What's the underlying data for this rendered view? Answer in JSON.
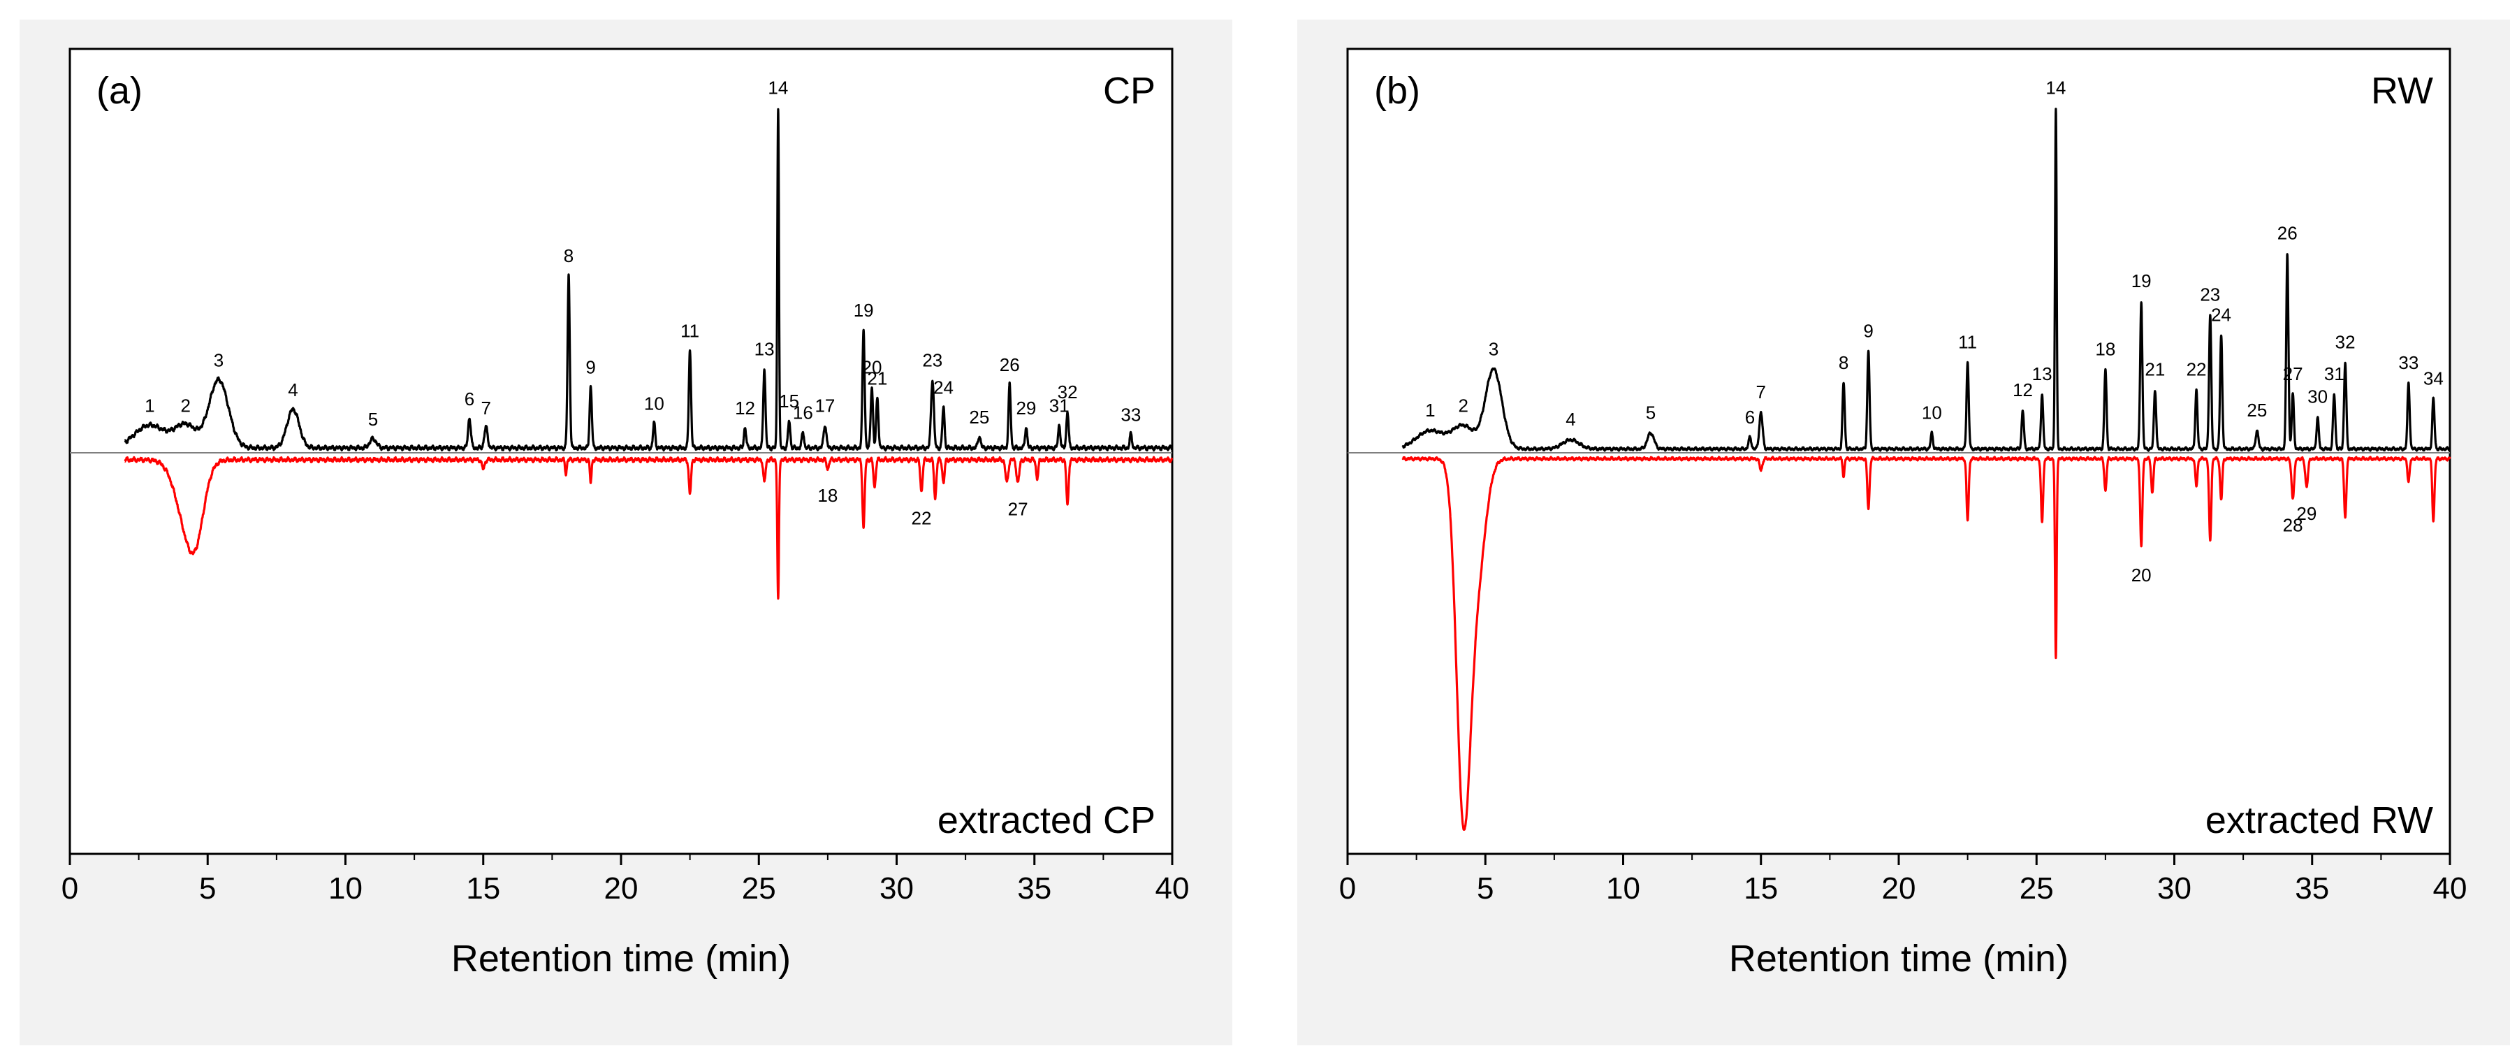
{
  "chart_data": [
    {
      "type": "line",
      "panel_label": "(a)",
      "sample_label": "CP",
      "extracted_label": "extracted CP",
      "xlabel": "Retention time (min)",
      "ylabel": "",
      "xlim": [
        0,
        40
      ],
      "ylim": [
        -1.8,
        1.5
      ],
      "xticks": [
        0,
        5,
        10,
        15,
        20,
        25,
        30,
        35,
        40
      ],
      "xtick_labels": [
        "0",
        "5",
        "10",
        "15",
        "20",
        "25",
        "30",
        "35",
        "40"
      ],
      "yticks": [],
      "colors": {
        "sample": "#000000",
        "extracted": "#ff0000"
      },
      "sample_peaks": [
        {
          "label": "1",
          "x": 2.9,
          "y": 0.1,
          "w": 0.55
        },
        {
          "label": "2",
          "x": 4.2,
          "y": 0.1,
          "w": 0.4
        },
        {
          "label": "3",
          "x": 5.4,
          "y": 0.3,
          "w": 0.35
        },
        {
          "label": "4",
          "x": 8.1,
          "y": 0.17,
          "w": 0.22
        },
        {
          "label": "5",
          "x": 11.0,
          "y": 0.04,
          "w": 0.12
        },
        {
          "label": "6",
          "x": 14.5,
          "y": 0.13,
          "w": 0.05
        },
        {
          "label": "7",
          "x": 15.1,
          "y": 0.09,
          "w": 0.06
        },
        {
          "label": "8",
          "x": 18.1,
          "y": 0.76,
          "w": 0.04
        },
        {
          "label": "9",
          "x": 18.9,
          "y": 0.27,
          "w": 0.04
        },
        {
          "label": "10",
          "x": 21.2,
          "y": 0.11,
          "w": 0.04
        },
        {
          "label": "11",
          "x": 22.5,
          "y": 0.43,
          "w": 0.04
        },
        {
          "label": "12",
          "x": 24.5,
          "y": 0.09,
          "w": 0.04
        },
        {
          "label": "13",
          "x": 25.2,
          "y": 0.35,
          "w": 0.04
        },
        {
          "label": "14",
          "x": 25.7,
          "y": 1.5,
          "w": 0.03
        },
        {
          "label": "15",
          "x": 26.1,
          "y": 0.12,
          "w": 0.04
        },
        {
          "label": "16",
          "x": 26.6,
          "y": 0.07,
          "w": 0.04
        },
        {
          "label": "17",
          "x": 27.4,
          "y": 0.1,
          "w": 0.05
        },
        {
          "label": "19",
          "x": 28.8,
          "y": 0.52,
          "w": 0.04
        },
        {
          "label": "20",
          "x": 29.1,
          "y": 0.27,
          "w": 0.04
        },
        {
          "label": "21",
          "x": 29.3,
          "y": 0.22,
          "w": 0.04
        },
        {
          "label": "23",
          "x": 31.3,
          "y": 0.3,
          "w": 0.05
        },
        {
          "label": "24",
          "x": 31.7,
          "y": 0.18,
          "w": 0.04
        },
        {
          "label": "25",
          "x": 33.0,
          "y": 0.05,
          "w": 0.05
        },
        {
          "label": "26",
          "x": 34.1,
          "y": 0.28,
          "w": 0.04
        },
        {
          "label": "29",
          "x": 34.7,
          "y": 0.09,
          "w": 0.04
        },
        {
          "label": "31",
          "x": 35.9,
          "y": 0.1,
          "w": 0.04
        },
        {
          "label": "32",
          "x": 36.2,
          "y": 0.16,
          "w": 0.04
        },
        {
          "label": "33",
          "x": 38.5,
          "y": 0.06,
          "w": 0.04
        }
      ],
      "extracted_peaks": [
        {
          "label": "",
          "x": 4.3,
          "y": 0.3,
          "w": 0.42
        },
        {
          "label": "",
          "x": 4.6,
          "y": 0.15,
          "w": 0.28
        },
        {
          "label": "",
          "x": 15.0,
          "y": 0.04,
          "w": 0.05
        },
        {
          "label": "",
          "x": 18.0,
          "y": 0.06,
          "w": 0.03
        },
        {
          "label": "",
          "x": 18.9,
          "y": 0.1,
          "w": 0.03
        },
        {
          "label": "",
          "x": 22.5,
          "y": 0.15,
          "w": 0.04
        },
        {
          "label": "",
          "x": 25.2,
          "y": 0.1,
          "w": 0.04
        },
        {
          "label": "",
          "x": 25.7,
          "y": 0.62,
          "w": 0.03
        },
        {
          "label": "18",
          "x": 27.5,
          "y": 0.04,
          "w": 0.04
        },
        {
          "label": "",
          "x": 28.8,
          "y": 0.3,
          "w": 0.04
        },
        {
          "label": "",
          "x": 29.2,
          "y": 0.12,
          "w": 0.04
        },
        {
          "label": "22",
          "x": 30.9,
          "y": 0.14,
          "w": 0.04
        },
        {
          "label": "",
          "x": 31.4,
          "y": 0.17,
          "w": 0.04
        },
        {
          "label": "",
          "x": 31.7,
          "y": 0.1,
          "w": 0.04
        },
        {
          "label": "",
          "x": 34.0,
          "y": 0.1,
          "w": 0.05
        },
        {
          "label": "27",
          "x": 34.4,
          "y": 0.1,
          "w": 0.05
        },
        {
          "label": "",
          "x": 35.1,
          "y": 0.08,
          "w": 0.04
        },
        {
          "label": "",
          "x": 36.2,
          "y": 0.2,
          "w": 0.04
        }
      ]
    },
    {
      "type": "line",
      "panel_label": "(b)",
      "sample_label": "RW",
      "extracted_label": "extracted RW",
      "xlabel": "Retention time (min)",
      "ylabel": "",
      "xlim": [
        0,
        40
      ],
      "ylim": [
        -1.8,
        1.5
      ],
      "xticks": [
        0,
        5,
        10,
        15,
        20,
        25,
        30,
        35,
        40
      ],
      "xtick_labels": [
        "0",
        "5",
        "10",
        "15",
        "20",
        "25",
        "30",
        "35",
        "40"
      ],
      "yticks": [],
      "colors": {
        "sample": "#000000",
        "extracted": "#ff0000"
      },
      "sample_peaks": [
        {
          "label": "1",
          "x": 3.0,
          "y": 0.08,
          "w": 0.5
        },
        {
          "label": "2",
          "x": 4.2,
          "y": 0.1,
          "w": 0.4
        },
        {
          "label": "3",
          "x": 5.3,
          "y": 0.35,
          "w": 0.3
        },
        {
          "label": "4",
          "x": 8.1,
          "y": 0.04,
          "w": 0.3
        },
        {
          "label": "5",
          "x": 11.0,
          "y": 0.07,
          "w": 0.12
        },
        {
          "label": "6",
          "x": 14.6,
          "y": 0.05,
          "w": 0.05
        },
        {
          "label": "7",
          "x": 15.0,
          "y": 0.16,
          "w": 0.06
        },
        {
          "label": "8",
          "x": 18.0,
          "y": 0.29,
          "w": 0.04
        },
        {
          "label": "9",
          "x": 18.9,
          "y": 0.43,
          "w": 0.04
        },
        {
          "label": "10",
          "x": 21.2,
          "y": 0.07,
          "w": 0.04
        },
        {
          "label": "11",
          "x": 22.5,
          "y": 0.38,
          "w": 0.04
        },
        {
          "label": "12",
          "x": 24.5,
          "y": 0.17,
          "w": 0.04
        },
        {
          "label": "13",
          "x": 25.2,
          "y": 0.24,
          "w": 0.04
        },
        {
          "label": "14",
          "x": 25.7,
          "y": 1.5,
          "w": 0.03
        },
        {
          "label": "18",
          "x": 27.5,
          "y": 0.35,
          "w": 0.04
        },
        {
          "label": "19",
          "x": 28.8,
          "y": 0.65,
          "w": 0.04
        },
        {
          "label": "21",
          "x": 29.3,
          "y": 0.26,
          "w": 0.04
        },
        {
          "label": "22",
          "x": 30.8,
          "y": 0.26,
          "w": 0.04
        },
        {
          "label": "23",
          "x": 31.3,
          "y": 0.59,
          "w": 0.04
        },
        {
          "label": "24",
          "x": 31.7,
          "y": 0.5,
          "w": 0.04
        },
        {
          "label": "25",
          "x": 33.0,
          "y": 0.08,
          "w": 0.05
        },
        {
          "label": "26",
          "x": 34.1,
          "y": 0.86,
          "w": 0.04
        },
        {
          "label": "27",
          "x": 34.3,
          "y": 0.24,
          "w": 0.04
        },
        {
          "label": "30",
          "x": 35.2,
          "y": 0.14,
          "w": 0.04
        },
        {
          "label": "31",
          "x": 35.8,
          "y": 0.24,
          "w": 0.04
        },
        {
          "label": "32",
          "x": 36.2,
          "y": 0.38,
          "w": 0.04
        },
        {
          "label": "33",
          "x": 38.5,
          "y": 0.29,
          "w": 0.04
        },
        {
          "label": "34",
          "x": 39.4,
          "y": 0.22,
          "w": 0.04
        }
      ],
      "extracted_peaks": [
        {
          "label": "",
          "x": 4.2,
          "y": 1.5,
          "w": 0.25
        },
        {
          "label": "",
          "x": 4.7,
          "y": 0.5,
          "w": 0.3
        },
        {
          "label": "",
          "x": 15.0,
          "y": 0.05,
          "w": 0.05
        },
        {
          "label": "",
          "x": 18.0,
          "y": 0.08,
          "w": 0.03
        },
        {
          "label": "",
          "x": 18.9,
          "y": 0.22,
          "w": 0.04
        },
        {
          "label": "",
          "x": 22.5,
          "y": 0.27,
          "w": 0.04
        },
        {
          "label": "",
          "x": 25.2,
          "y": 0.28,
          "w": 0.04
        },
        {
          "label": "",
          "x": 25.7,
          "y": 0.88,
          "w": 0.03
        },
        {
          "label": "",
          "x": 27.5,
          "y": 0.14,
          "w": 0.04
        },
        {
          "label": "20",
          "x": 28.8,
          "y": 0.39,
          "w": 0.04
        },
        {
          "label": "",
          "x": 29.2,
          "y": 0.15,
          "w": 0.04
        },
        {
          "label": "",
          "x": 30.8,
          "y": 0.12,
          "w": 0.04
        },
        {
          "label": "",
          "x": 31.3,
          "y": 0.36,
          "w": 0.04
        },
        {
          "label": "",
          "x": 31.7,
          "y": 0.18,
          "w": 0.04
        },
        {
          "label": "28",
          "x": 34.3,
          "y": 0.17,
          "w": 0.05
        },
        {
          "label": "29",
          "x": 34.8,
          "y": 0.12,
          "w": 0.05
        },
        {
          "label": "",
          "x": 36.2,
          "y": 0.26,
          "w": 0.04
        },
        {
          "label": "",
          "x": 38.5,
          "y": 0.1,
          "w": 0.04
        },
        {
          "label": "",
          "x": 39.4,
          "y": 0.27,
          "w": 0.04
        }
      ]
    }
  ]
}
